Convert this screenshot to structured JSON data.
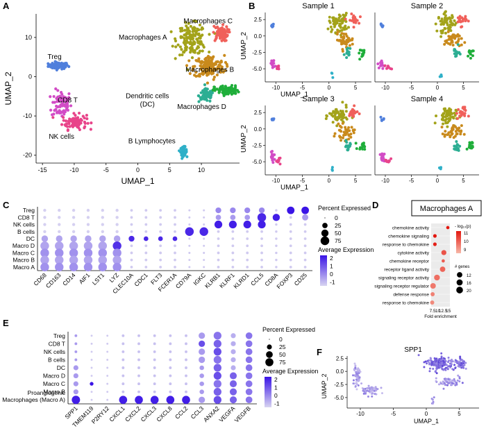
{
  "panels": {
    "A": "A",
    "B": "B",
    "C": "C",
    "D": "D",
    "E": "E",
    "F": "F"
  },
  "colors": {
    "Treg": "#4f7fdc",
    "CD8 T": "#d24cc6",
    "NK cells": "#e8448a",
    "B Lymphocytes": "#2fb0c8",
    "Dendritic cells (DC)": "#2cae93",
    "Macrophages A": "#a3a31a",
    "Macrophages B": "#c98a1c",
    "Macrophages C": "#f0605a",
    "Macrophages D": "#1fae3a",
    "dot_low": "#d8d4f1",
    "dot_high": "#3a14e6",
    "pathway_low": "#f7b8a8",
    "pathway_high": "#e3170f",
    "spp1_low": "#d7d0f1",
    "spp1_high": "#3c1fd0"
  },
  "chart_data": [
    {
      "id": "A",
      "type": "scatter",
      "xlabel": "UMAP_1",
      "ylabel": "UMAP_2",
      "xlim": [
        -16,
        16
      ],
      "ylim": [
        -22,
        16
      ],
      "xticks": [
        -15,
        -10,
        -5,
        0,
        5,
        10
      ],
      "yticks": [
        -20,
        -10,
        0,
        10
      ],
      "clusters": [
        {
          "name": "Treg",
          "label": "Treg",
          "center": [
            -12.5,
            2.8
          ],
          "spread": [
            1.3,
            0.7
          ]
        },
        {
          "name": "CD8 T",
          "label": "CD8 T",
          "center": [
            -12.0,
            -7.0
          ],
          "spread": [
            1.3,
            3.0
          ]
        },
        {
          "name": "NK cells",
          "label": "NK cells",
          "center": [
            -10.0,
            -11.5
          ],
          "spread": [
            1.6,
            1.6
          ]
        },
        {
          "name": "B Lymphocytes",
          "label": "B Lymphocytes",
          "center": [
            7.2,
            -19.0
          ],
          "spread": [
            0.4,
            0.9
          ]
        },
        {
          "name": "Dendritic cells (DC)",
          "label": "Dendritic cells\n(DC)",
          "center": [
            10.8,
            -4.8
          ],
          "spread": [
            1.0,
            1.4
          ]
        },
        {
          "name": "Macrophages A",
          "label": "Macrophages A",
          "center": [
            8.5,
            9.5
          ],
          "spread": [
            1.9,
            3.2
          ]
        },
        {
          "name": "Macrophages B",
          "label": "Macrophages B",
          "center": [
            11.2,
            2.5
          ],
          "spread": [
            2.0,
            2.4
          ]
        },
        {
          "name": "Macrophages C",
          "label": "Macrophages C",
          "center": [
            13.0,
            11.0
          ],
          "spread": [
            1.0,
            1.6
          ]
        },
        {
          "name": "Macrophages D",
          "label": "Macrophages D",
          "center": [
            14.0,
            -3.5
          ],
          "spread": [
            1.6,
            1.0
          ]
        }
      ]
    },
    {
      "id": "B",
      "type": "scatter",
      "xlabel": "UMAP_1",
      "ylabel": "UMAP_2",
      "facets": [
        "Sample 1",
        "Sample 2",
        "Sample 3",
        "Sample 4"
      ],
      "xlim": [
        -12,
        8
      ],
      "ylim": [
        -7,
        4
      ],
      "xticks": [
        -10,
        -5,
        0,
        5
      ],
      "yticks": [
        -5.0,
        -2.5,
        0.0,
        2.5
      ]
    },
    {
      "id": "C",
      "type": "dot",
      "cells": [
        "Treg",
        "CD8 T",
        "NK cells",
        "B cells",
        "DC",
        "Macro D",
        "Macro C",
        "Macro B",
        "Macro A"
      ],
      "genes": [
        "CD68",
        "CD163",
        "CD14",
        "AIF1",
        "LST1",
        "LYZ",
        "CLEC10A",
        "CDC1",
        "FLT3",
        "FCER1A",
        "CD79A",
        "IGKC",
        "KLRB1",
        "KLRF1",
        "KLRD1",
        "CCL5",
        "CD8A",
        "FOXP3",
        "CD25"
      ],
      "size_legend_title": "Percent Expressed",
      "size_levels": [
        "0",
        "25",
        "50",
        "75"
      ],
      "color_legend_title": "Average Expression",
      "color_ticks": [
        "2",
        "1",
        "0",
        "-1"
      ]
    },
    {
      "id": "D",
      "type": "dot",
      "box_title": "Macrophages A",
      "terms": [
        "chemokine activity",
        "chemokine signaling",
        "response to chemokine",
        "cytokine activity",
        "chemokine receptor",
        "receptor ligand activity",
        "signaling receptor activity",
        "signaling receptor regulator",
        "defense response",
        "response to chemokine"
      ],
      "fold_enrichment": [
        14.8,
        8.6,
        8.6,
        12.9,
        12.6,
        12.3,
        9.6,
        7.7,
        7.5,
        7.3
      ],
      "n_genes": [
        3,
        4,
        4,
        10,
        3,
        12,
        14,
        13,
        6,
        6
      ],
      "xlabel": "Fold enrichment",
      "xticks": [
        "7.5",
        "10",
        "12.5",
        "15"
      ],
      "color_legend_title": "- log₁₀(p)",
      "color_ticks": [
        "11",
        "10",
        "9"
      ],
      "size_legend_title": "# genes",
      "size_levels": [
        "12",
        "16",
        "20"
      ]
    },
    {
      "id": "E",
      "type": "dot",
      "cells": [
        "Treg",
        "CD8 T",
        "NK cells",
        "B cells",
        "DC",
        "Macro D",
        "Macro C",
        "Macro B",
        "Proangiogenic\nMacrophages (Macro A)"
      ],
      "genes": [
        "SPP1",
        "TMEM119",
        "P2RY12",
        "CXCL1",
        "CXCL2",
        "CXCL3",
        "CXCL8",
        "CCL2",
        "CCL3",
        "ANXA2",
        "VEGFA",
        "VEGFB"
      ],
      "size_legend_title": "Percent Expressed",
      "size_levels": [
        "0",
        "25",
        "50",
        "75"
      ],
      "color_legend_title": "Average Expression",
      "color_ticks": [
        "2",
        "1",
        "0",
        "-1"
      ]
    },
    {
      "id": "F",
      "type": "scatter",
      "title": "SPP1",
      "xlabel": "UMAP_1",
      "ylabel": "UMAP_2",
      "xlim": [
        -12,
        8
      ],
      "ylim": [
        -7,
        4
      ],
      "xticks": [
        -10,
        -5,
        0,
        5
      ],
      "yticks": [
        -5.0,
        -2.5,
        0.0,
        2.5
      ]
    }
  ]
}
